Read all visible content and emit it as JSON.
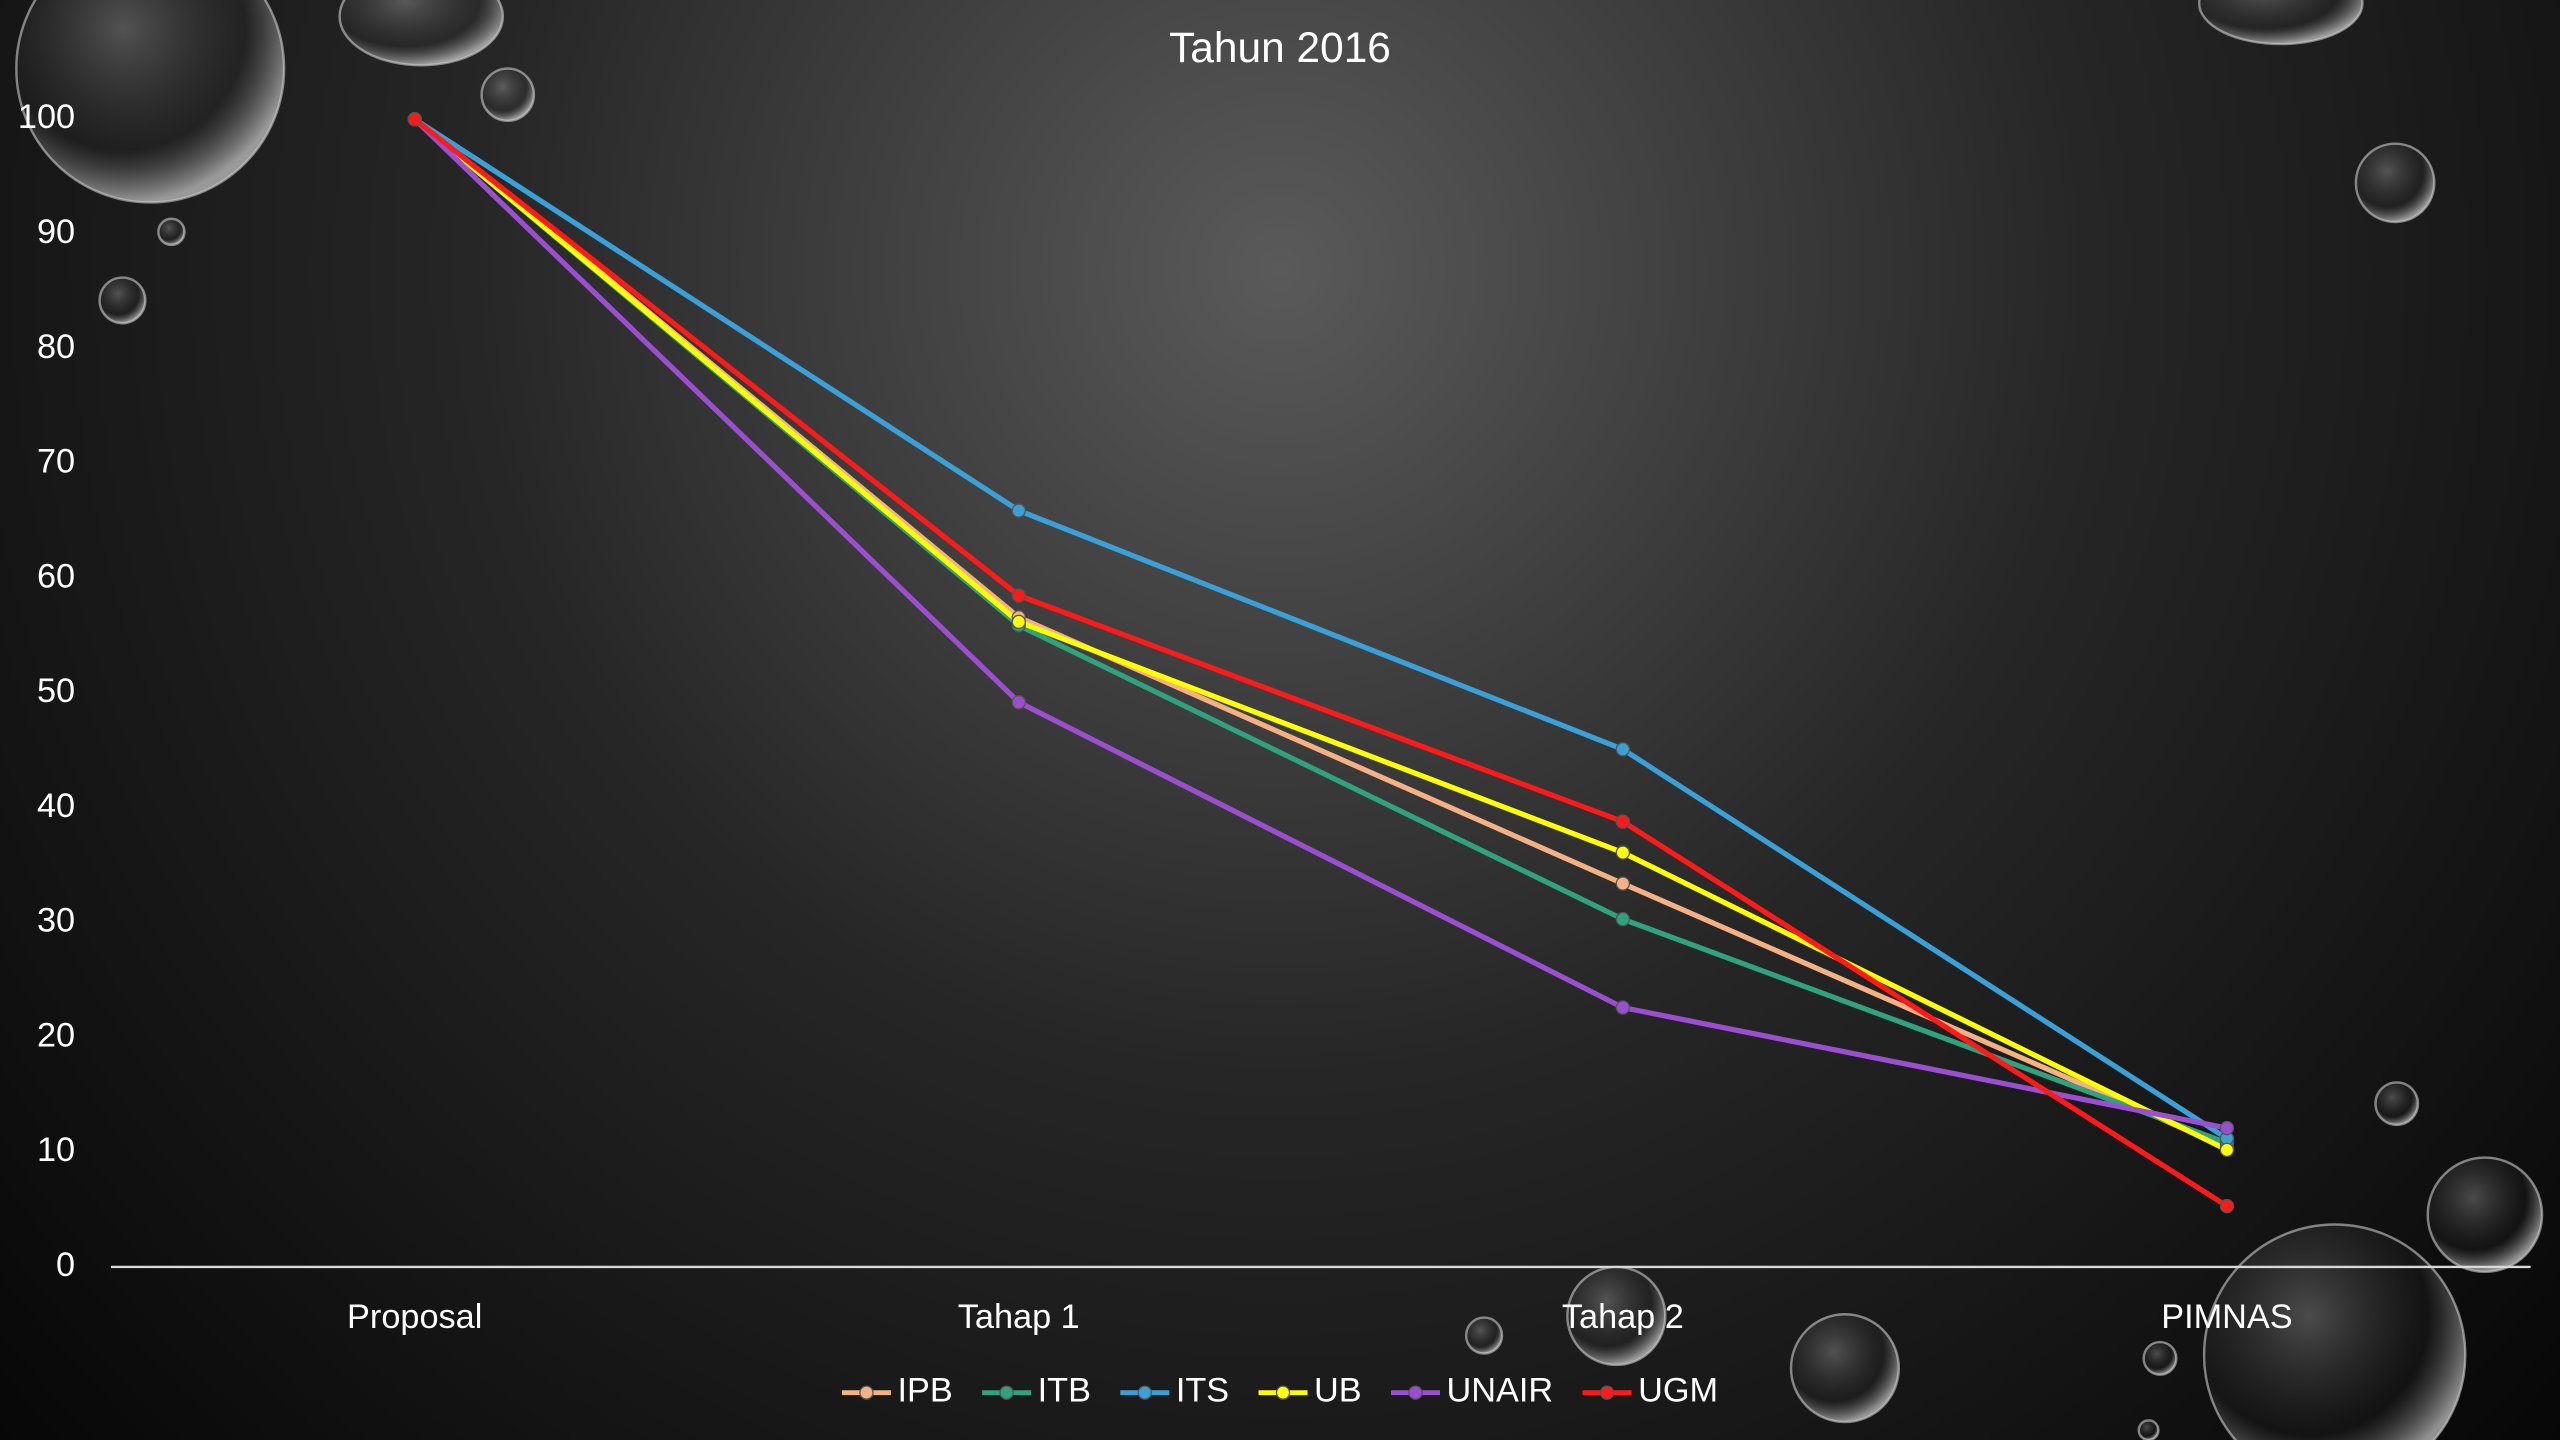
{
  "chart_data": {
    "type": "line",
    "title": "Tahun 2016",
    "categories": [
      "Proposal",
      "Tahap 1",
      "Tahap 2",
      "PIMNAS"
    ],
    "series": [
      {
        "name": "IPB",
        "color": "#f4b183",
        "values": [
          100,
          56.6,
          33.4,
          10.4
        ]
      },
      {
        "name": "ITB",
        "color": "#2ea37e",
        "values": [
          100,
          55.9,
          30.3,
          10.8
        ]
      },
      {
        "name": "ITS",
        "color": "#3aa0d8",
        "values": [
          100,
          65.9,
          45.1,
          11.2
        ]
      },
      {
        "name": "UB",
        "color": "#ffff00",
        "values": [
          100,
          56.2,
          36.1,
          10.2
        ]
      },
      {
        "name": "UNAIR",
        "color": "#9b4fd0",
        "values": [
          100,
          49.2,
          22.6,
          12.1
        ]
      },
      {
        "name": "UGM",
        "color": "#ff1a1a",
        "values": [
          100,
          58.5,
          38.8,
          5.3
        ]
      }
    ],
    "ylim": [
      0,
      100
    ],
    "yticks": [
      0,
      10,
      20,
      30,
      40,
      50,
      60,
      70,
      80,
      90,
      100
    ],
    "grid": false,
    "legend": "bottom"
  }
}
